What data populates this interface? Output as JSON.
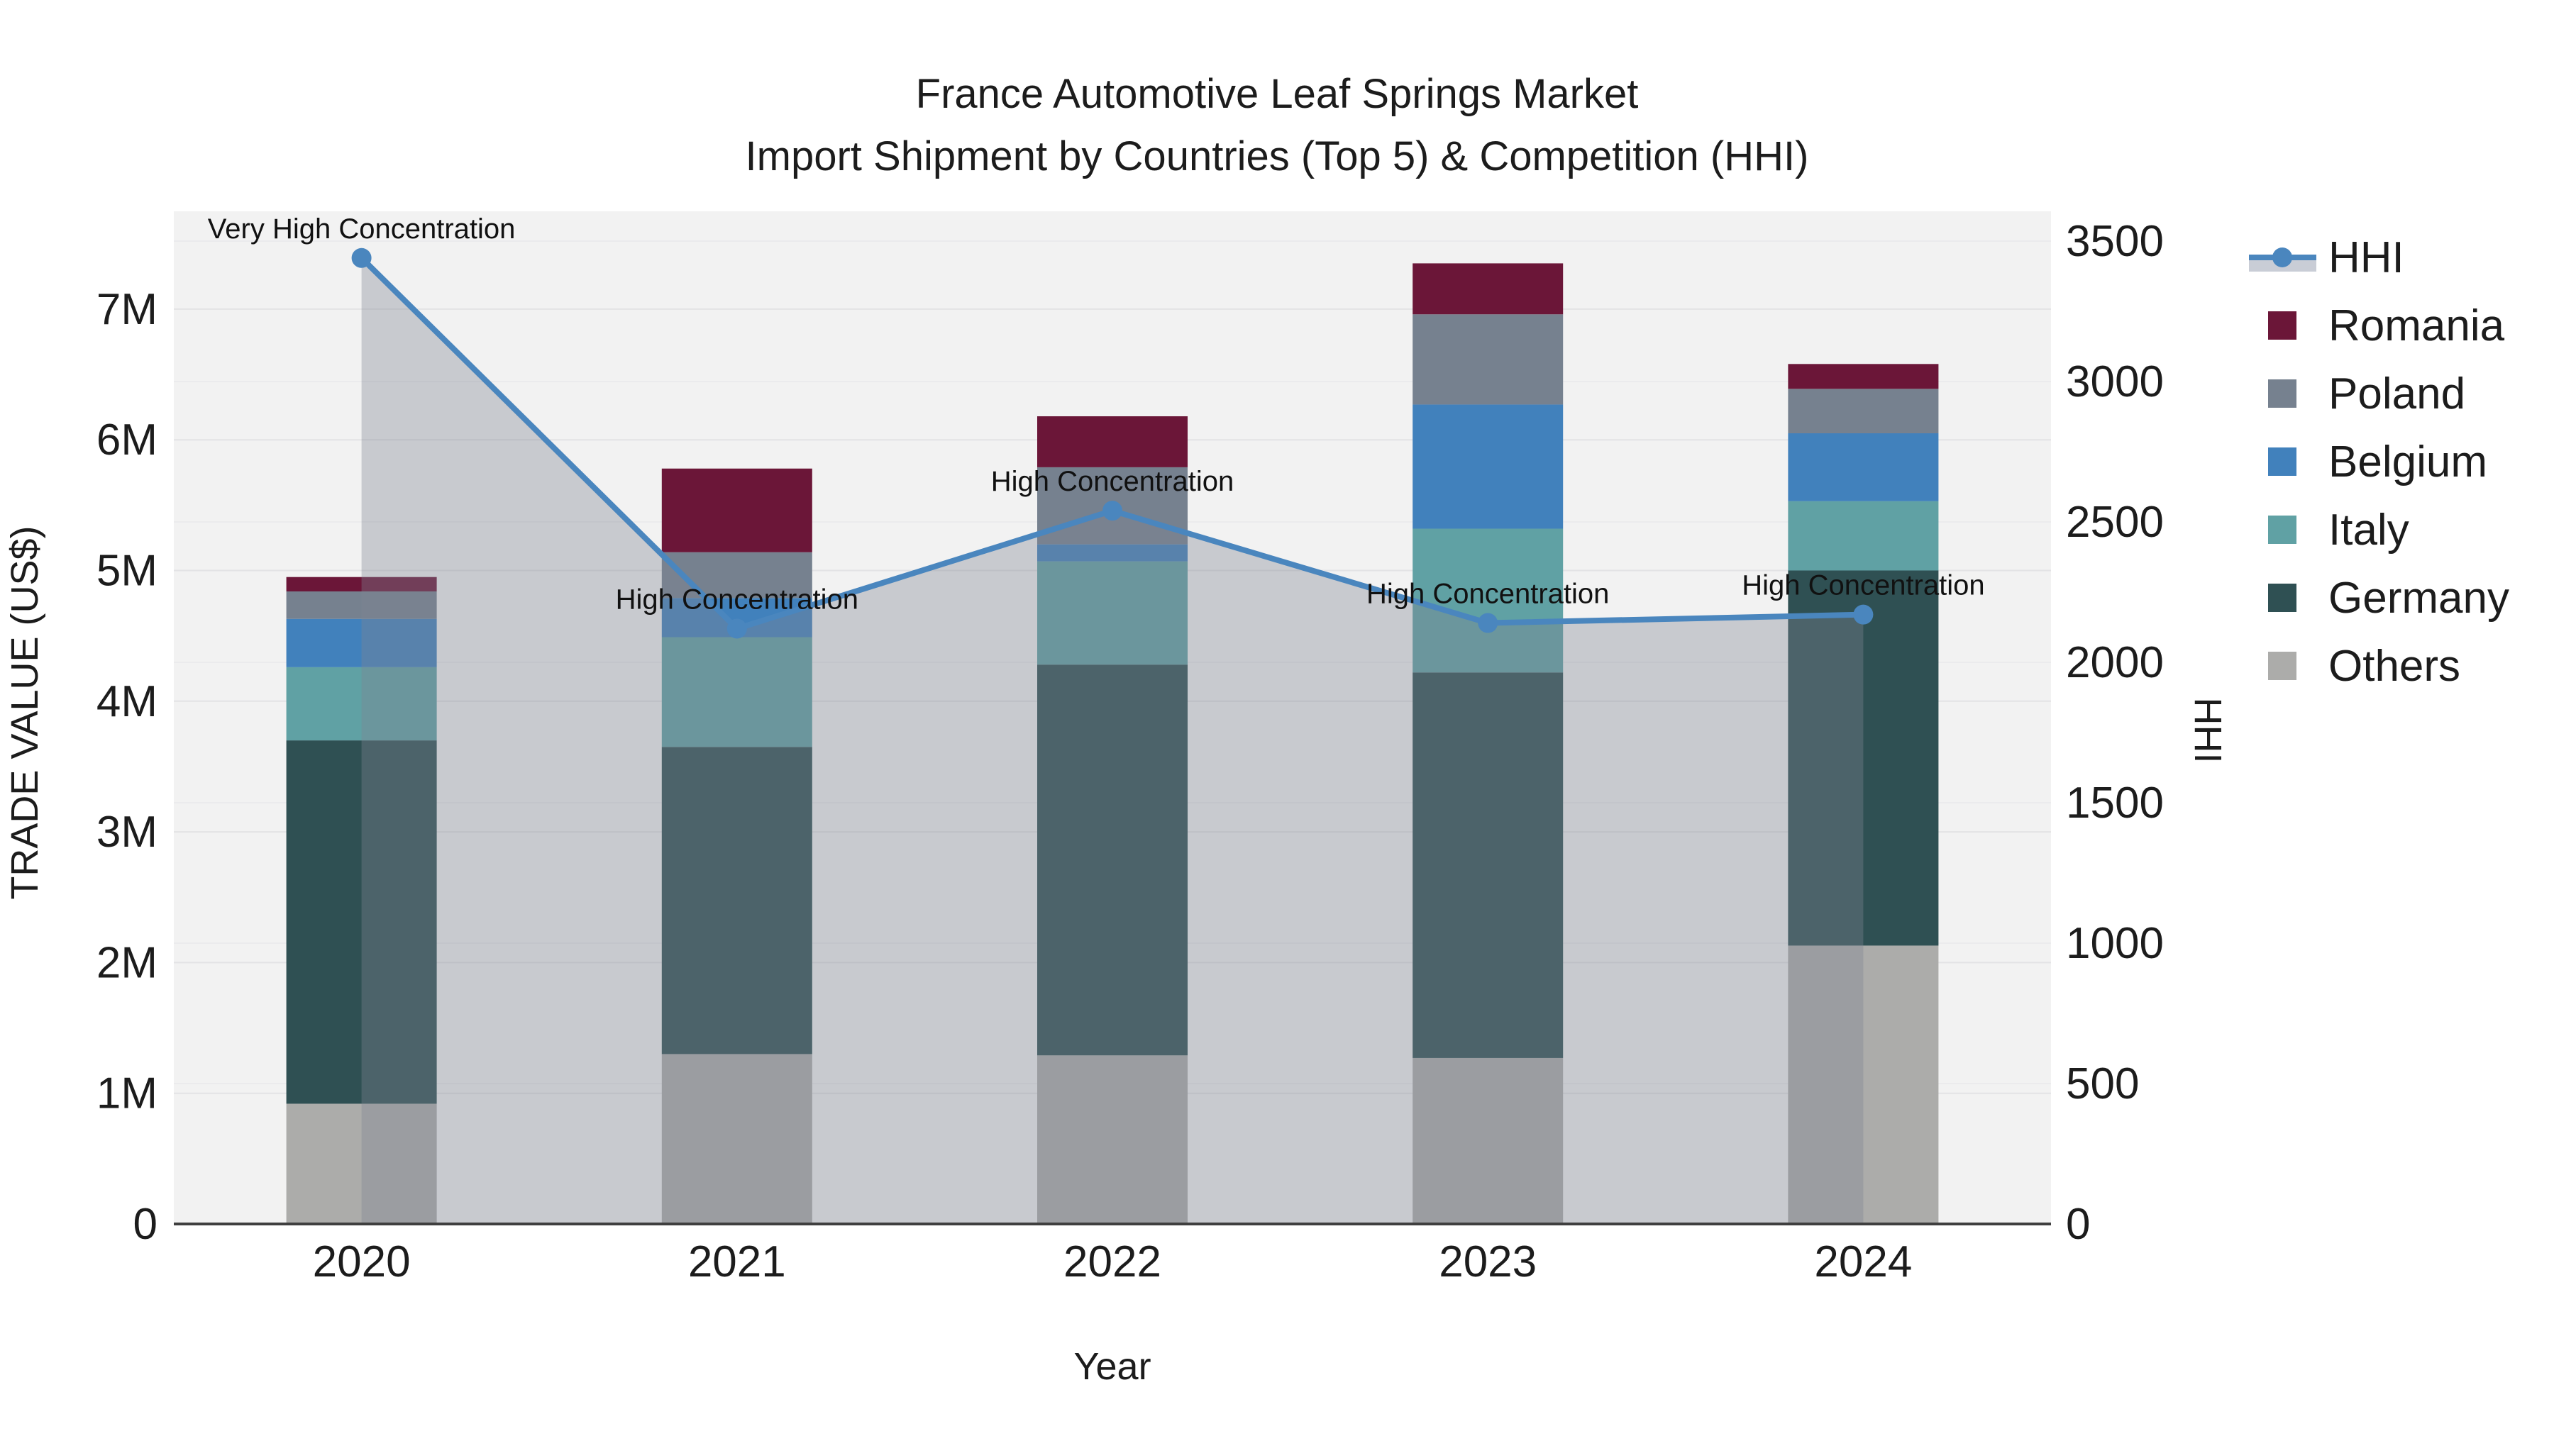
{
  "title": {
    "line1": "France Automotive Leaf Springs Market",
    "line2": "Import Shipment by Countries (Top 5) & Competition (HHI)"
  },
  "axes": {
    "left_title": "TRADE VALUE (US$)",
    "right_title": "HHI",
    "x_title": "Year",
    "left_ticks": [
      "0",
      "1M",
      "2M",
      "3M",
      "4M",
      "5M",
      "6M",
      "7M"
    ],
    "right_ticks": [
      "0",
      "500",
      "1000",
      "1500",
      "2000",
      "2500",
      "3000",
      "3500"
    ]
  },
  "chart_data": {
    "type": "bar+line",
    "subtype": "stacked-bar with secondary-axis line and area fill",
    "categories": [
      "2020",
      "2021",
      "2022",
      "2023",
      "2024"
    ],
    "bar_units": "million US$",
    "bar_series": [
      {
        "name": "Others",
        "color": "#acacaa",
        "values": [
          0.92,
          1.3,
          1.29,
          1.27,
          2.13
        ]
      },
      {
        "name": "Germany",
        "color": "#2f5053",
        "values": [
          2.78,
          2.35,
          2.99,
          2.95,
          2.87
        ]
      },
      {
        "name": "Italy",
        "color": "#60a1a4",
        "values": [
          0.56,
          0.84,
          0.79,
          1.1,
          0.53
        ]
      },
      {
        "name": "Belgium",
        "color": "#4181bc",
        "values": [
          0.37,
          0.3,
          0.13,
          0.95,
          0.52
        ]
      },
      {
        "name": "Poland",
        "color": "#76818f",
        "values": [
          0.21,
          0.35,
          0.59,
          0.69,
          0.34
        ]
      },
      {
        "name": "Romania",
        "color": "#6b1638",
        "values": [
          0.11,
          0.64,
          0.39,
          0.39,
          0.19
        ]
      }
    ],
    "bar_totals": [
      4.95,
      5.78,
      6.18,
      7.35,
      6.58
    ],
    "line_series": {
      "name": "HHI",
      "values": [
        3440,
        2120,
        2540,
        2140,
        2170
      ],
      "color": "#4a86be",
      "fill_color": "rgba(128,134,146,0.37)",
      "fill": "tozeroy"
    },
    "annotations": [
      {
        "year": "2020",
        "text": "Very High Concentration"
      },
      {
        "year": "2021",
        "text": "High Concentration"
      },
      {
        "year": "2022",
        "text": "High Concentration"
      },
      {
        "year": "2023",
        "text": "High Concentration"
      },
      {
        "year": "2024",
        "text": "High Concentration"
      }
    ],
    "left_axis_range_musd": [
      0,
      7.75
    ],
    "right_axis_range_hhi": [
      0,
      3610
    ],
    "grid": true,
    "legend_position": "right",
    "plot_bg": "#f2f2f2",
    "grid_color_left": "#e3e3e5",
    "grid_color_right": "#ebebed",
    "axis_line_color": "#3f3f3f"
  },
  "legend": {
    "items": [
      {
        "label": "HHI",
        "type": "line",
        "color": "#4a86be"
      },
      {
        "label": "Romania",
        "type": "swatch",
        "color": "#6b1638"
      },
      {
        "label": "Poland",
        "type": "swatch",
        "color": "#76818f"
      },
      {
        "label": "Belgium",
        "type": "swatch",
        "color": "#4181bc"
      },
      {
        "label": "Italy",
        "type": "swatch",
        "color": "#60a1a4"
      },
      {
        "label": "Germany",
        "type": "swatch",
        "color": "#2f5053"
      },
      {
        "label": "Others",
        "type": "swatch",
        "color": "#acacaa"
      }
    ]
  }
}
